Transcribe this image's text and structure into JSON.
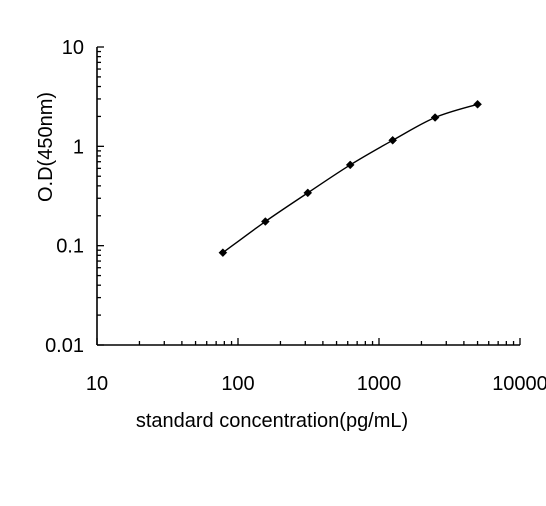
{
  "chart_data": {
    "type": "line",
    "title": "",
    "xlabel": "standard concentration(pg/mL)",
    "ylabel": "O.D(450nm)",
    "x_scale": "log",
    "y_scale": "log",
    "xlim": [
      10,
      10000
    ],
    "ylim": [
      0.01,
      10
    ],
    "x_tick_labels": [
      "10",
      "100",
      "1000",
      "10000"
    ],
    "y_tick_labels": [
      "0.01",
      "0.1",
      "1",
      "10"
    ],
    "grid": false,
    "legend": "none",
    "colors": {
      "line": "#000000",
      "marker": "#000000",
      "axis": "#000000"
    },
    "series": [
      {
        "x": [
          78.125,
          156.25,
          312.5,
          625,
          1250,
          2500,
          5000
        ],
        "y": [
          0.085,
          0.175,
          0.34,
          0.65,
          1.15,
          1.95,
          2.65
        ]
      }
    ]
  }
}
